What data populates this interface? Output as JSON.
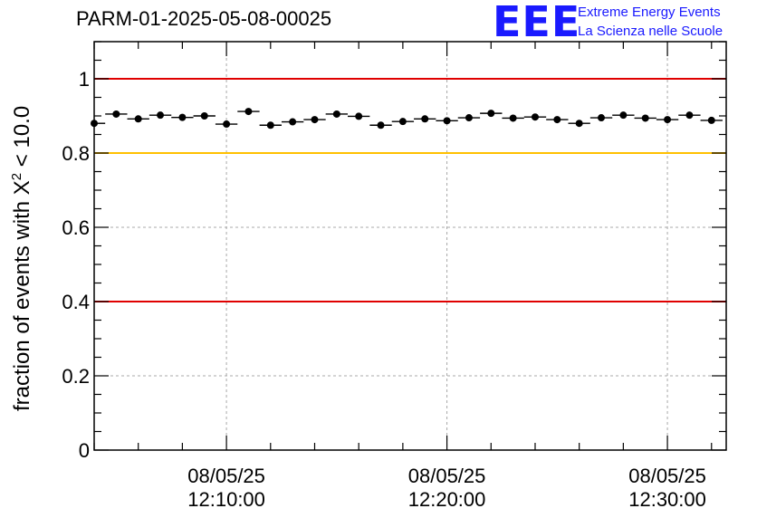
{
  "title": "PARM-01-2025-05-08-00025",
  "logo": {
    "mark": "EEE",
    "line1": "Extreme Energy Events",
    "line2": "La Scienza nelle Scuole",
    "color": "#1a1aff"
  },
  "chart_data": {
    "type": "scatter",
    "ylabel": {
      "prefix": "fraction of events with ",
      "symbol": "X",
      "sup": "2",
      "suffix": " < 10.0"
    },
    "xlabel": "",
    "ylim": [
      0,
      1.1
    ],
    "yticks": [
      {
        "v": 0,
        "label": "0"
      },
      {
        "v": 0.2,
        "label": "0.2"
      },
      {
        "v": 0.4,
        "label": "0.4"
      },
      {
        "v": 0.6,
        "label": "0.6"
      },
      {
        "v": 0.8,
        "label": "0.8"
      },
      {
        "v": 1.0,
        "label": "1"
      }
    ],
    "xlim": [
      "12:04:00",
      "12:32:40"
    ],
    "xticks": [
      {
        "t": "12:10:00",
        "date": "08/05/25",
        "time": "12:10:00"
      },
      {
        "t": "12:20:00",
        "date": "08/05/25",
        "time": "12:20:00"
      },
      {
        "t": "12:30:00",
        "date": "08/05/25",
        "time": "12:30:00"
      }
    ],
    "grid": true,
    "reference_lines": [
      {
        "y": 1.0,
        "color": "#e00000"
      },
      {
        "y": 0.8,
        "color": "#ffc000"
      },
      {
        "y": 0.4,
        "color": "#e00000"
      }
    ],
    "bin_width_minutes": 1,
    "points": [
      {
        "t": "12:04:00",
        "y": 0.88
      },
      {
        "t": "12:05:00",
        "y": 0.905
      },
      {
        "t": "12:06:00",
        "y": 0.892
      },
      {
        "t": "12:07:00",
        "y": 0.902
      },
      {
        "t": "12:08:00",
        "y": 0.896
      },
      {
        "t": "12:09:00",
        "y": 0.9
      },
      {
        "t": "12:10:00",
        "y": 0.878
      },
      {
        "t": "12:11:00",
        "y": 0.912
      },
      {
        "t": "12:12:00",
        "y": 0.875
      },
      {
        "t": "12:13:00",
        "y": 0.884
      },
      {
        "t": "12:14:00",
        "y": 0.89
      },
      {
        "t": "12:15:00",
        "y": 0.905
      },
      {
        "t": "12:16:00",
        "y": 0.899
      },
      {
        "t": "12:17:00",
        "y": 0.875
      },
      {
        "t": "12:18:00",
        "y": 0.885
      },
      {
        "t": "12:19:00",
        "y": 0.892
      },
      {
        "t": "12:20:00",
        "y": 0.887
      },
      {
        "t": "12:21:00",
        "y": 0.895
      },
      {
        "t": "12:22:00",
        "y": 0.907
      },
      {
        "t": "12:23:00",
        "y": 0.894
      },
      {
        "t": "12:24:00",
        "y": 0.897
      },
      {
        "t": "12:25:00",
        "y": 0.89
      },
      {
        "t": "12:26:00",
        "y": 0.88
      },
      {
        "t": "12:27:00",
        "y": 0.895
      },
      {
        "t": "12:28:00",
        "y": 0.902
      },
      {
        "t": "12:29:00",
        "y": 0.894
      },
      {
        "t": "12:30:00",
        "y": 0.89
      },
      {
        "t": "12:31:00",
        "y": 0.902
      },
      {
        "t": "12:32:00",
        "y": 0.888
      }
    ]
  }
}
